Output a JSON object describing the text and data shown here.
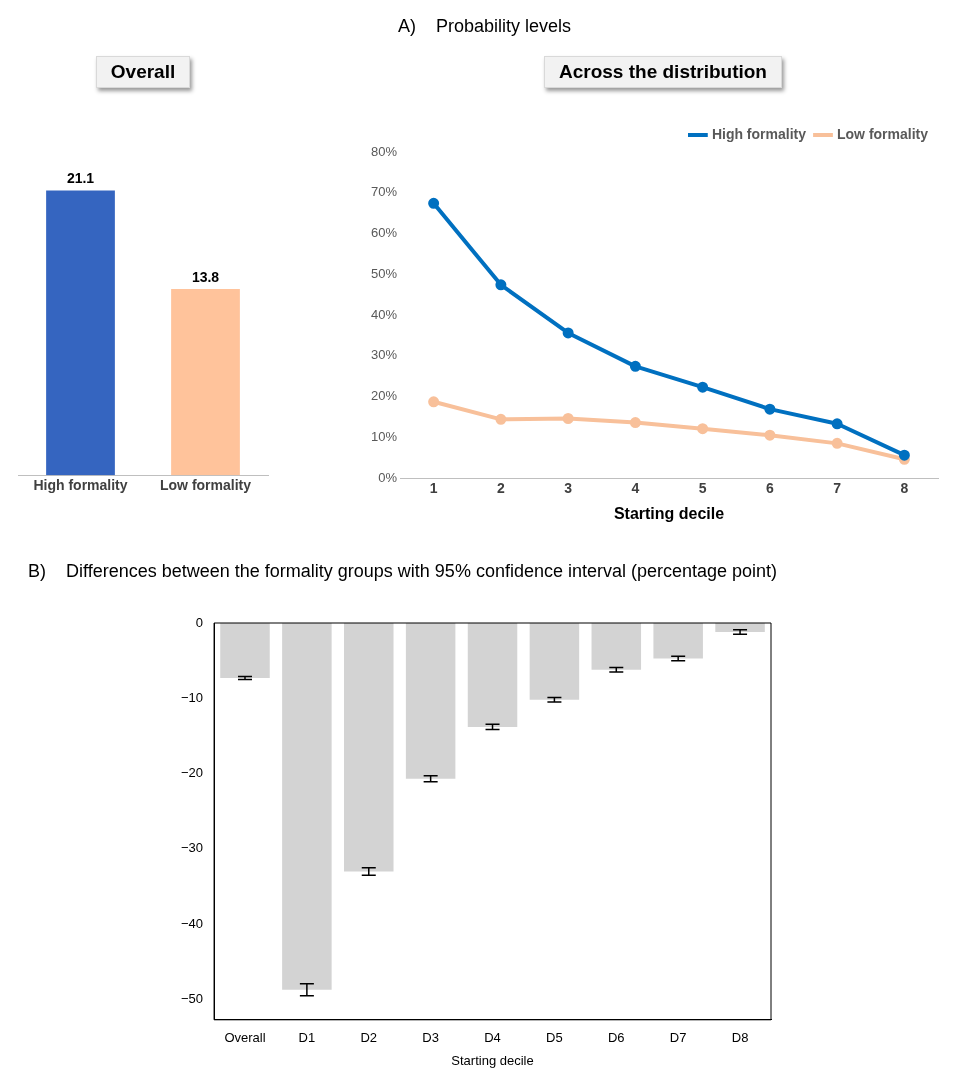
{
  "chart_data": [
    {
      "type": "bar",
      "title": "Overall",
      "annotations": [
        "A)    Probability levels"
      ],
      "categories": [
        "High formality",
        "Low formality"
      ],
      "values": [
        21.1,
        13.8
      ],
      "colors": [
        "#3565c0",
        "#ffc39b"
      ],
      "data_labels": true
    },
    {
      "type": "line",
      "title": "Across the distribution",
      "xlabel": "Starting decile",
      "categories": [
        "1",
        "2",
        "3",
        "4",
        "5",
        "6",
        "7",
        "8"
      ],
      "series": [
        {
          "name": "High formality",
          "color": "#0070c0",
          "values": [
            67.4,
            47.4,
            35.6,
            27.4,
            22.3,
            16.9,
            13.3,
            5.6
          ]
        },
        {
          "name": "Low formality",
          "color": "#f8c09a",
          "values": [
            18.7,
            14.4,
            14.6,
            13.6,
            12.1,
            10.5,
            8.5,
            4.6
          ]
        }
      ],
      "ylim": [
        0,
        80
      ],
      "yticks": [
        {
          "value": 0,
          "label": "0%"
        },
        {
          "value": 10,
          "label": "10%"
        },
        {
          "value": 20,
          "label": "20%"
        },
        {
          "value": 30,
          "label": "30%"
        },
        {
          "value": 40,
          "label": "40%"
        },
        {
          "value": 50,
          "label": "50%"
        },
        {
          "value": 60,
          "label": "60%"
        },
        {
          "value": 70,
          "label": "70%"
        },
        {
          "value": 80,
          "label": "80%"
        }
      ],
      "legend": "top right",
      "marker": "circle"
    },
    {
      "type": "bar",
      "title": "B)    Differences between the formality groups with 95% confidence interval (percentage point)",
      "xlabel": "Starting decile",
      "categories": [
        "Overall",
        "D1",
        "D2",
        "D3",
        "D4",
        "D5",
        "D6",
        "D7",
        "D8"
      ],
      "values": [
        -7.3,
        -48.7,
        -33.0,
        -20.7,
        -13.8,
        -10.2,
        -6.2,
        -4.7,
        -1.2
      ],
      "color": "#d3d3d3",
      "errors": [
        0.2,
        0.8,
        0.5,
        0.4,
        0.35,
        0.3,
        0.3,
        0.3,
        0.3
      ],
      "ylim": [
        -52.7,
        0
      ],
      "yticks": [
        {
          "value": 0,
          "label": "0"
        },
        {
          "value": -10,
          "label": "−10"
        },
        {
          "value": -20,
          "label": "−20"
        },
        {
          "value": -30,
          "label": "−30"
        },
        {
          "value": -40,
          "label": "−40"
        },
        {
          "value": -50,
          "label": "−50"
        }
      ]
    }
  ]
}
